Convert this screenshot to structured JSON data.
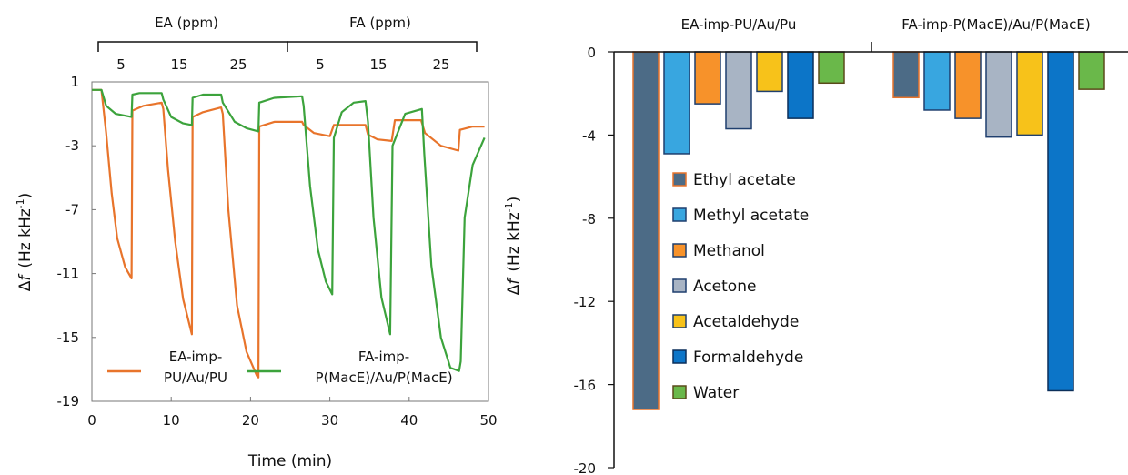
{
  "chart_data": [
    {
      "type": "line",
      "xlabel": "Time (min)",
      "ylabel": "Δf (Hz kHz⁻¹)",
      "ylabel_parts": {
        "delta": "Δ",
        "f": "f",
        "unit": "(Hz kHz",
        "exp": "-1",
        "close": ")"
      },
      "xlim": [
        0,
        50
      ],
      "ylim": [
        -19,
        1
      ],
      "xticks": [
        "0",
        "10",
        "20",
        "30",
        "40",
        "50"
      ],
      "yticks": [
        "1",
        "-3",
        "-7",
        "-11",
        "-15",
        "-19"
      ],
      "groups": [
        {
          "label": "EA (ppm)",
          "concentrations": [
            "5",
            "15",
            "25"
          ]
        },
        {
          "label": "FA (ppm)",
          "concentrations": [
            "5",
            "15",
            "25"
          ]
        }
      ],
      "series": [
        {
          "name": "EA-imp-PU/Au/PU",
          "legend_lines": [
            "EA-imp-",
            "PU/Au/PU"
          ],
          "color": "#e8742b",
          "points": [
            [
              0,
              0.5
            ],
            [
              1.2,
              0.5
            ],
            [
              1.8,
              -2.2
            ],
            [
              2.5,
              -6
            ],
            [
              3.2,
              -8.8
            ],
            [
              4.2,
              -10.6
            ],
            [
              5.0,
              -11.3
            ],
            [
              5.1,
              -0.8
            ],
            [
              6.5,
              -0.5
            ],
            [
              8.8,
              -0.3
            ],
            [
              9.0,
              -0.7
            ],
            [
              9.6,
              -4.5
            ],
            [
              10.5,
              -9
            ],
            [
              11.5,
              -12.6
            ],
            [
              12.6,
              -14.8
            ],
            [
              12.7,
              -1.2
            ],
            [
              14,
              -0.9
            ],
            [
              16.3,
              -0.6
            ],
            [
              16.5,
              -1.0
            ],
            [
              17.2,
              -7
            ],
            [
              18.3,
              -13
            ],
            [
              19.5,
              -15.9
            ],
            [
              20.8,
              -17.4
            ],
            [
              21.0,
              -17.5
            ],
            [
              21.1,
              -1.8
            ],
            [
              23,
              -1.5
            ],
            [
              26.5,
              -1.5
            ],
            [
              26.7,
              -1.7
            ],
            [
              28,
              -2.2
            ],
            [
              30,
              -2.4
            ],
            [
              30.5,
              -1.7
            ],
            [
              33,
              -1.7
            ],
            [
              34.5,
              -1.7
            ],
            [
              34.8,
              -2.3
            ],
            [
              36,
              -2.6
            ],
            [
              37.8,
              -2.7
            ],
            [
              38.2,
              -1.4
            ],
            [
              39.5,
              -1.4
            ],
            [
              41.5,
              -1.4
            ],
            [
              42,
              -2.2
            ],
            [
              44,
              -3.0
            ],
            [
              46.2,
              -3.3
            ],
            [
              46.4,
              -2.0
            ],
            [
              48,
              -1.8
            ],
            [
              49.5,
              -1.8
            ]
          ]
        },
        {
          "name": "FA-imp-P(MacE)/Au/P(MacE)",
          "legend_lines": [
            "FA-imp-",
            "P(MacE)/Au/P(MacE)"
          ],
          "color": "#3ca33c",
          "points": [
            [
              0,
              0.5
            ],
            [
              1.2,
              0.5
            ],
            [
              1.8,
              -0.5
            ],
            [
              3,
              -1.0
            ],
            [
              5.0,
              -1.2
            ],
            [
              5.1,
              0.2
            ],
            [
              6,
              0.3
            ],
            [
              8.8,
              0.3
            ],
            [
              9.0,
              -0.1
            ],
            [
              10,
              -1.2
            ],
            [
              11.5,
              -1.6
            ],
            [
              12.6,
              -1.7
            ],
            [
              12.7,
              0.0
            ],
            [
              14,
              0.2
            ],
            [
              16.3,
              0.2
            ],
            [
              16.5,
              -0.3
            ],
            [
              18,
              -1.5
            ],
            [
              19.5,
              -1.9
            ],
            [
              21.0,
              -2.1
            ],
            [
              21.1,
              -0.3
            ],
            [
              23,
              0.0
            ],
            [
              26.5,
              0.1
            ],
            [
              26.7,
              -0.5
            ],
            [
              27.5,
              -5.5
            ],
            [
              28.5,
              -9.5
            ],
            [
              29.5,
              -11.5
            ],
            [
              30.3,
              -12.3
            ],
            [
              30.5,
              -2.5
            ],
            [
              31.5,
              -0.9
            ],
            [
              33,
              -0.3
            ],
            [
              34.5,
              -0.2
            ],
            [
              34.8,
              -1.5
            ],
            [
              35.5,
              -7.5
            ],
            [
              36.5,
              -12.5
            ],
            [
              37.6,
              -14.8
            ],
            [
              37.9,
              -3.0
            ],
            [
              39.5,
              -1.0
            ],
            [
              41.6,
              -0.7
            ],
            [
              41.9,
              -3.5
            ],
            [
              42.8,
              -10.5
            ],
            [
              44,
              -15.0
            ],
            [
              45.2,
              -16.9
            ],
            [
              46.3,
              -17.1
            ],
            [
              46.5,
              -16.5
            ],
            [
              47,
              -7.5
            ],
            [
              48,
              -4.2
            ],
            [
              49.5,
              -2.5
            ]
          ]
        }
      ],
      "legend_placement": "bottom"
    },
    {
      "type": "bar",
      "ylabel": "Δf (Hz kHz⁻¹)",
      "ylabel_parts": {
        "delta": "Δ",
        "f": "f",
        "unit": "(Hz kHz",
        "exp": "-1",
        "close": ")"
      },
      "ylim": [
        -20,
        0
      ],
      "yticks": [
        "0",
        "-4",
        "-8",
        "-12",
        "-16",
        "-20"
      ],
      "groups": [
        "EA-imp-PU/Au/Pu",
        "FA-imp-P(MacE)/Au/P(MacE)"
      ],
      "legend_placement": "left-center",
      "series": [
        {
          "name": "Ethyl acetate",
          "fill": "#4c6b86",
          "stroke": "#e8742b",
          "values": [
            -17.2,
            -2.2
          ]
        },
        {
          "name": "Methyl acetate",
          "fill": "#38a6e0",
          "stroke": "#1f3f6e",
          "values": [
            -4.9,
            -2.8
          ]
        },
        {
          "name": "Methanol",
          "fill": "#f7922a",
          "stroke": "#1f3f6e",
          "values": [
            -2.5,
            -3.2
          ]
        },
        {
          "name": "Acetone",
          "fill": "#a8b4c4",
          "stroke": "#1f3f6e",
          "values": [
            -3.7,
            -4.1
          ]
        },
        {
          "name": "Acetaldehyde",
          "fill": "#f7c21a",
          "stroke": "#1f3f6e",
          "values": [
            -1.9,
            -4.0
          ]
        },
        {
          "name": "Formaldehyde",
          "fill": "#0c75c8",
          "stroke": "#0b2f5a",
          "values": [
            -3.2,
            -16.3
          ]
        },
        {
          "name": "Water",
          "fill": "#6ab84a",
          "stroke": "#5a4a1a",
          "values": [
            -1.5,
            -1.8
          ]
        }
      ]
    }
  ]
}
